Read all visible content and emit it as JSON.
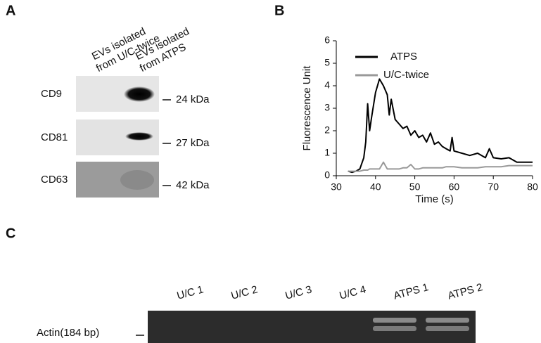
{
  "panel_a": {
    "label": "A",
    "headers": [
      [
        "EVs isolated",
        "from U/C-twice"
      ],
      [
        "EVs isolated",
        "from ATPS"
      ]
    ],
    "rows": [
      {
        "marker": "CD9",
        "size": "24 kDa"
      },
      {
        "marker": "CD81",
        "size": "27 kDa"
      },
      {
        "marker": "CD63",
        "size": "42 kDa"
      }
    ]
  },
  "panel_b_label": "B",
  "chart_data": {
    "type": "line",
    "xlabel": "Time (s)",
    "ylabel": "Fluorescence Unit",
    "x": [
      33,
      34,
      35,
      36,
      37,
      37.5,
      38,
      38.5,
      39,
      40,
      41,
      42,
      43,
      43.5,
      44,
      45,
      46,
      47,
      48,
      49,
      50,
      51,
      52,
      53,
      54,
      55,
      56,
      57,
      58,
      59,
      59.5,
      60,
      62,
      64,
      66,
      68,
      69,
      70,
      72,
      74,
      76,
      78,
      80
    ],
    "series": [
      {
        "name": "ATPS",
        "color": "#000000",
        "values": [
          0.2,
          0.15,
          0.2,
          0.3,
          0.8,
          1.5,
          3.2,
          2.0,
          2.6,
          3.7,
          4.3,
          4.0,
          3.6,
          2.7,
          3.4,
          2.5,
          2.3,
          2.1,
          2.2,
          1.8,
          2.0,
          1.7,
          1.8,
          1.5,
          1.9,
          1.4,
          1.5,
          1.3,
          1.2,
          1.1,
          1.7,
          1.1,
          1.0,
          0.9,
          1.0,
          0.8,
          1.2,
          0.8,
          0.75,
          0.8,
          0.6,
          0.6,
          0.6
        ]
      },
      {
        "name": "U/C-twice",
        "color": "#999999",
        "values": [
          0.2,
          0.2,
          0.2,
          0.2,
          0.25,
          0.25,
          0.25,
          0.3,
          0.3,
          0.3,
          0.3,
          0.6,
          0.3,
          0.3,
          0.3,
          0.3,
          0.3,
          0.35,
          0.35,
          0.5,
          0.3,
          0.3,
          0.35,
          0.35,
          0.35,
          0.35,
          0.35,
          0.35,
          0.4,
          0.4,
          0.4,
          0.4,
          0.35,
          0.35,
          0.35,
          0.4,
          0.4,
          0.4,
          0.4,
          0.45,
          0.45,
          0.45,
          0.45
        ]
      }
    ],
    "xlim": [
      30,
      80
    ],
    "xticks": [
      30,
      40,
      50,
      60,
      70,
      80
    ],
    "ylim": [
      0,
      6
    ],
    "yticks": [
      0,
      1,
      2,
      3,
      4,
      5,
      6
    ],
    "legend": "upper right"
  },
  "panel_c": {
    "label": "C",
    "lanes": [
      "U/C 1",
      "U/C 2",
      "U/C 3",
      "U/C 4",
      "ATPS 1",
      "ATPS 2"
    ],
    "band": "Actin(184 bp)"
  }
}
